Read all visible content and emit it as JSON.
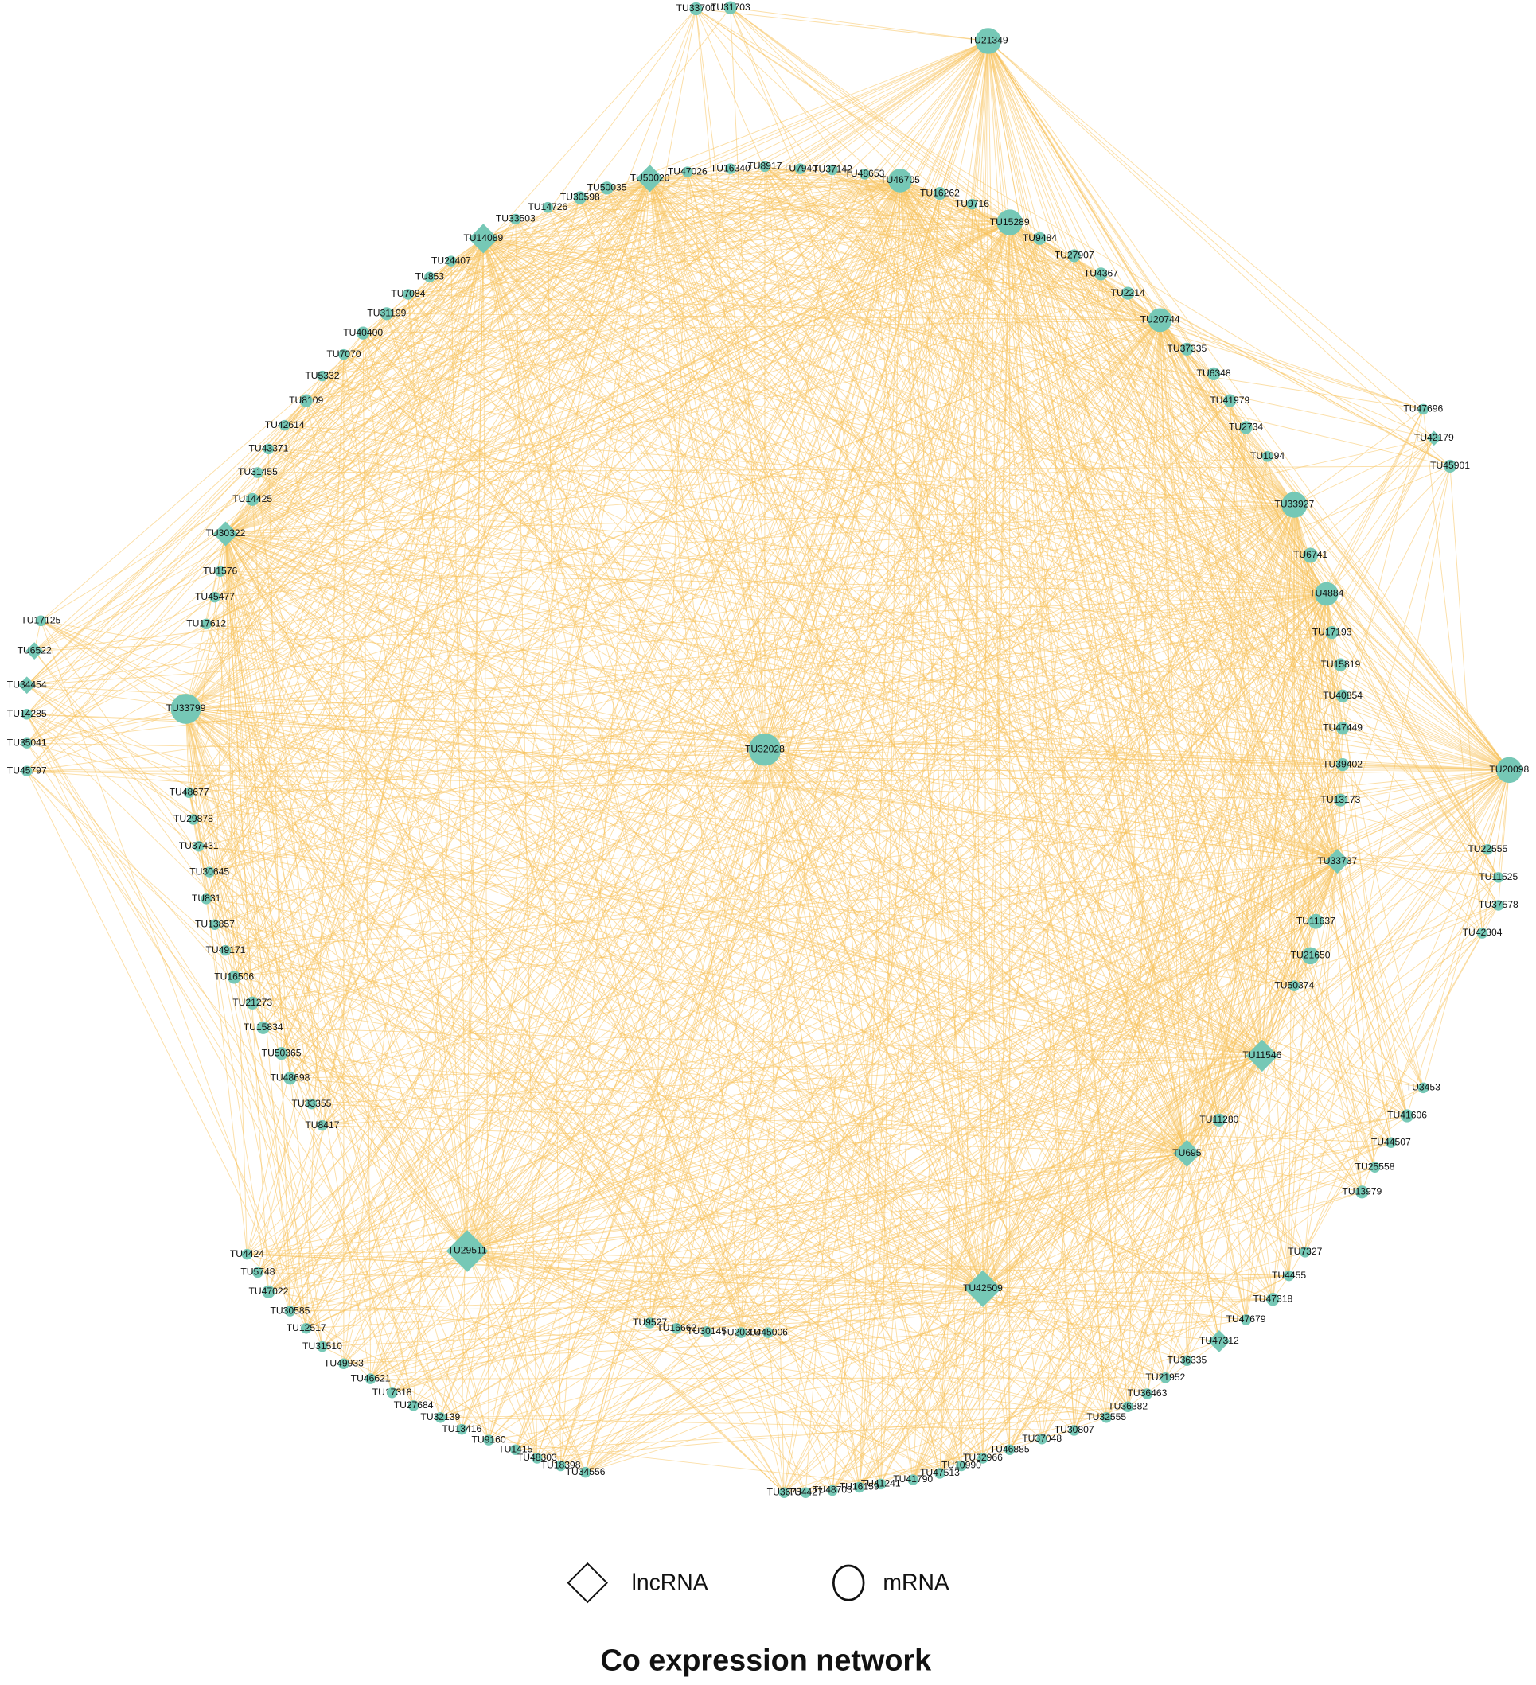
{
  "title": "Co expression network",
  "legend": [
    {
      "label": "lncRNA",
      "shape": "diamond"
    },
    {
      "label": "mRNA",
      "shape": "circle"
    }
  ],
  "nodes": [
    {
      "label": "TU33700",
      "shape": "circle"
    },
    {
      "label": "TU31703",
      "shape": "circle"
    },
    {
      "label": "TU21349",
      "shape": "circle"
    },
    {
      "label": "TU47026",
      "shape": "circle"
    },
    {
      "label": "TU16340",
      "shape": "circle"
    },
    {
      "label": "TU8917",
      "shape": "circle"
    },
    {
      "label": "TU7940",
      "shape": "circle"
    },
    {
      "label": "TU37142",
      "shape": "circle"
    },
    {
      "label": "TU48653",
      "shape": "circle"
    },
    {
      "label": "TU46705",
      "shape": "circle"
    },
    {
      "label": "TU16262",
      "shape": "circle"
    },
    {
      "label": "TU9716",
      "shape": "circle"
    },
    {
      "label": "TU15289",
      "shape": "circle"
    },
    {
      "label": "TU9484",
      "shape": "circle"
    },
    {
      "label": "TU27907",
      "shape": "circle"
    },
    {
      "label": "TU4367",
      "shape": "circle"
    },
    {
      "label": "TU2214",
      "shape": "circle"
    },
    {
      "label": "TU20744",
      "shape": "circle"
    },
    {
      "label": "TU37335",
      "shape": "circle"
    },
    {
      "label": "TU6348",
      "shape": "circle"
    },
    {
      "label": "TU41979",
      "shape": "circle"
    },
    {
      "label": "TU2734",
      "shape": "circle"
    },
    {
      "label": "TU1094",
      "shape": "circle"
    },
    {
      "label": "TU33927",
      "shape": "circle"
    },
    {
      "label": "TU6741",
      "shape": "circle"
    },
    {
      "label": "TU4884",
      "shape": "circle"
    },
    {
      "label": "TU17193",
      "shape": "circle"
    },
    {
      "label": "TU15819",
      "shape": "circle"
    },
    {
      "label": "TU40854",
      "shape": "circle"
    },
    {
      "label": "TU47449",
      "shape": "circle"
    },
    {
      "label": "TU39402",
      "shape": "circle"
    },
    {
      "label": "TU13173",
      "shape": "circle"
    },
    {
      "label": "TU33737",
      "shape": "diamond"
    },
    {
      "label": "TU11637",
      "shape": "circle"
    },
    {
      "label": "TU21650",
      "shape": "circle"
    },
    {
      "label": "TU50374",
      "shape": "circle"
    },
    {
      "label": "TU11546",
      "shape": "diamond"
    },
    {
      "label": "TU11280",
      "shape": "circle"
    },
    {
      "label": "TU695",
      "shape": "diamond"
    },
    {
      "label": "TU42509",
      "shape": "diamond"
    },
    {
      "label": "TU29511",
      "shape": "diamond"
    },
    {
      "label": "TU32028",
      "shape": "circle"
    },
    {
      "label": "TU50020",
      "shape": "diamond"
    },
    {
      "label": "TU50035",
      "shape": "circle"
    },
    {
      "label": "TU30598",
      "shape": "circle"
    },
    {
      "label": "TU14726",
      "shape": "circle"
    },
    {
      "label": "TU33503",
      "shape": "circle"
    },
    {
      "label": "TU14089",
      "shape": "diamond"
    },
    {
      "label": "TU24407",
      "shape": "circle"
    },
    {
      "label": "TU853",
      "shape": "circle"
    },
    {
      "label": "TU7084",
      "shape": "circle"
    },
    {
      "label": "TU31199",
      "shape": "circle"
    },
    {
      "label": "TU40400",
      "shape": "circle"
    },
    {
      "label": "TU7070",
      "shape": "circle"
    },
    {
      "label": "TU5332",
      "shape": "circle"
    },
    {
      "label": "TU8109",
      "shape": "circle"
    },
    {
      "label": "TU42614",
      "shape": "circle"
    },
    {
      "label": "TU43371",
      "shape": "circle"
    },
    {
      "label": "TU31455",
      "shape": "circle"
    },
    {
      "label": "TU14425",
      "shape": "circle"
    },
    {
      "label": "TU30322",
      "shape": "diamond"
    },
    {
      "label": "TU1576",
      "shape": "circle"
    },
    {
      "label": "TU45477",
      "shape": "circle"
    },
    {
      "label": "TU17612",
      "shape": "circle"
    },
    {
      "label": "TU33799",
      "shape": "circle"
    },
    {
      "label": "TU48677",
      "shape": "circle"
    },
    {
      "label": "TU29878",
      "shape": "circle"
    },
    {
      "label": "TU37431",
      "shape": "circle"
    },
    {
      "label": "TU30645",
      "shape": "circle"
    },
    {
      "label": "TU831",
      "shape": "circle"
    },
    {
      "label": "TU13857",
      "shape": "circle"
    },
    {
      "label": "TU49171",
      "shape": "circle"
    },
    {
      "label": "TU16506",
      "shape": "circle"
    },
    {
      "label": "TU21273",
      "shape": "circle"
    },
    {
      "label": "TU15834",
      "shape": "circle"
    },
    {
      "label": "TU50365",
      "shape": "circle"
    },
    {
      "label": "TU48698",
      "shape": "circle"
    },
    {
      "label": "TU33355",
      "shape": "circle"
    },
    {
      "label": "TU8417",
      "shape": "circle"
    },
    {
      "label": "TU17125",
      "shape": "circle"
    },
    {
      "label": "TU6522",
      "shape": "diamond"
    },
    {
      "label": "TU34454",
      "shape": "diamond"
    },
    {
      "label": "TU14285",
      "shape": "circle"
    },
    {
      "label": "TU35041",
      "shape": "circle"
    },
    {
      "label": "TU45797",
      "shape": "circle"
    },
    {
      "label": "TU47696",
      "shape": "circle"
    },
    {
      "label": "TU42179",
      "shape": "diamond"
    },
    {
      "label": "TU45901",
      "shape": "circle"
    },
    {
      "label": "TU20098",
      "shape": "circle"
    },
    {
      "label": "TU22555",
      "shape": "circle"
    },
    {
      "label": "TU11525",
      "shape": "circle"
    },
    {
      "label": "TU37578",
      "shape": "circle"
    },
    {
      "label": "TU42304",
      "shape": "circle"
    },
    {
      "label": "TU3453",
      "shape": "circle"
    },
    {
      "label": "TU41606",
      "shape": "circle"
    },
    {
      "label": "TU44507",
      "shape": "circle"
    },
    {
      "label": "TU25558",
      "shape": "circle"
    },
    {
      "label": "TU13979",
      "shape": "circle"
    },
    {
      "label": "TU7327",
      "shape": "circle"
    },
    {
      "label": "TU4455",
      "shape": "circle"
    },
    {
      "label": "TU47318",
      "shape": "circle"
    },
    {
      "label": "TU47679",
      "shape": "circle"
    },
    {
      "label": "TU47312",
      "shape": "diamond"
    },
    {
      "label": "TU36335",
      "shape": "circle"
    },
    {
      "label": "TU21952",
      "shape": "circle"
    },
    {
      "label": "TU36463",
      "shape": "circle"
    },
    {
      "label": "TU36382",
      "shape": "circle"
    },
    {
      "label": "TU32555",
      "shape": "circle"
    },
    {
      "label": "TU30807",
      "shape": "circle"
    },
    {
      "label": "TU37048",
      "shape": "circle"
    },
    {
      "label": "TU46885",
      "shape": "circle"
    },
    {
      "label": "TU32966",
      "shape": "circle"
    },
    {
      "label": "TU10990",
      "shape": "circle"
    },
    {
      "label": "TU47513",
      "shape": "circle"
    },
    {
      "label": "TU41790",
      "shape": "circle"
    },
    {
      "label": "TU41241",
      "shape": "circle"
    },
    {
      "label": "TU16159",
      "shape": "circle"
    },
    {
      "label": "TU48703",
      "shape": "circle"
    },
    {
      "label": "TU4427",
      "shape": "circle"
    },
    {
      "label": "TU3675",
      "shape": "circle"
    },
    {
      "label": "TU4424",
      "shape": "circle"
    },
    {
      "label": "TU5748",
      "shape": "circle"
    },
    {
      "label": "TU47022",
      "shape": "circle"
    },
    {
      "label": "TU30585",
      "shape": "circle"
    },
    {
      "label": "TU12517",
      "shape": "circle"
    },
    {
      "label": "TU31510",
      "shape": "circle"
    },
    {
      "label": "TU49933",
      "shape": "circle"
    },
    {
      "label": "TU46621",
      "shape": "circle"
    },
    {
      "label": "TU17318",
      "shape": "circle"
    },
    {
      "label": "TU27684",
      "shape": "circle"
    },
    {
      "label": "TU32139",
      "shape": "circle"
    },
    {
      "label": "TU13416",
      "shape": "circle"
    },
    {
      "label": "TU9160",
      "shape": "circle"
    },
    {
      "label": "TU1415",
      "shape": "circle"
    },
    {
      "label": "TU48303",
      "shape": "circle"
    },
    {
      "label": "TU18398",
      "shape": "circle"
    },
    {
      "label": "TU34556",
      "shape": "circle"
    },
    {
      "label": "TU9527",
      "shape": "circle"
    },
    {
      "label": "TU16662",
      "shape": "circle"
    },
    {
      "label": "TU30145",
      "shape": "circle"
    },
    {
      "label": "TU20304",
      "shape": "circle"
    },
    {
      "label": "TU45006",
      "shape": "circle"
    }
  ]
}
